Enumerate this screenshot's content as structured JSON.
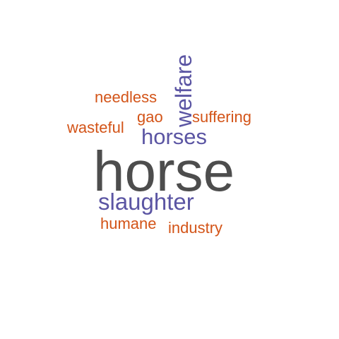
{
  "palette": {
    "dark": "#4d4d4d",
    "purple": "#5b55a3",
    "orange": "#d35418"
  },
  "words": [
    {
      "key": "horse",
      "text": "horse",
      "color": "#4d4d4d"
    },
    {
      "key": "slaughter",
      "text": "slaughter",
      "color": "#5b55a3"
    },
    {
      "key": "horses",
      "text": "horses",
      "color": "#5b55a3"
    },
    {
      "key": "welfare",
      "text": "welfare",
      "color": "#5b55a3"
    },
    {
      "key": "needless",
      "text": "needless",
      "color": "#d35418"
    },
    {
      "key": "gao",
      "text": "gao",
      "color": "#d35418"
    },
    {
      "key": "suffering",
      "text": "suffering",
      "color": "#d35418"
    },
    {
      "key": "wasteful",
      "text": "wasteful",
      "color": "#d35418"
    },
    {
      "key": "humane",
      "text": "humane",
      "color": "#d35418"
    },
    {
      "key": "industry",
      "text": "industry",
      "color": "#d35418"
    }
  ]
}
